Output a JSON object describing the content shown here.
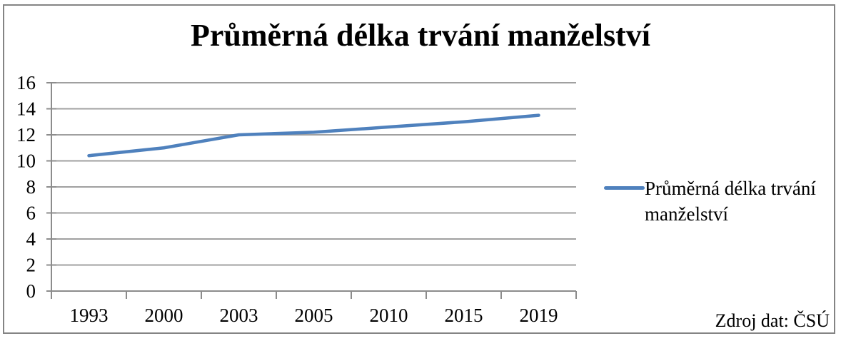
{
  "title": "Průměrná délka trvání manželství",
  "legend": {
    "label": "Průměrná délka trvání manželství"
  },
  "source_note": "Zdroj dat: ČSÚ",
  "colors": {
    "series": "#4F81BD",
    "gridline": "#a0a0a0",
    "axis": "#8c8c8c",
    "frame_border": "#848484",
    "text": "#000000"
  },
  "chart_data": {
    "type": "line",
    "title": "Průměrná délka trvání manželství",
    "categories": [
      "1993",
      "2000",
      "2003",
      "2005",
      "2010",
      "2015",
      "2019"
    ],
    "series": [
      {
        "name": "Průměrná délka trvání manželství",
        "color": "#4F81BD",
        "values": [
          10.4,
          11.0,
          12.0,
          12.2,
          12.6,
          13.0,
          13.5
        ]
      }
    ],
    "xlabel": "",
    "ylabel": "",
    "ylim": [
      0,
      16
    ],
    "yticks": [
      0,
      2,
      4,
      6,
      8,
      10,
      12,
      14,
      16
    ],
    "grid": true,
    "legend_position": "right",
    "source": "Zdroj dat: ČSÚ"
  }
}
